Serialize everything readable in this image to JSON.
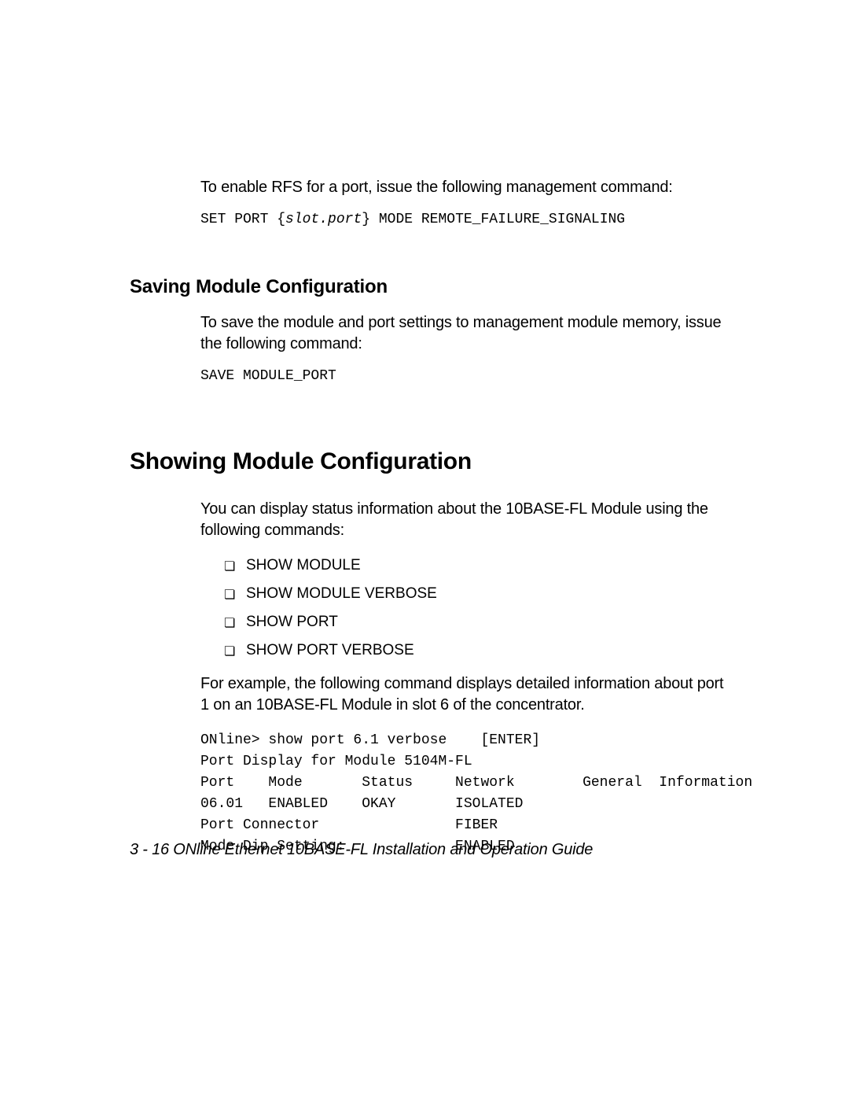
{
  "intro": {
    "rfs_text": "To enable RFS for a port, issue the following management command:",
    "cmd_prefix": "SET PORT {",
    "cmd_param": "slot.port",
    "cmd_suffix": "} MODE REMOTE_FAILURE_SIGNALING"
  },
  "saving": {
    "heading": "Saving Module Configuration",
    "body": "To save the module and port settings to management module memory, issue the following command:",
    "cmd": "SAVE MODULE_PORT"
  },
  "showing": {
    "heading": "Showing Module Configuration",
    "body": "You can display status information about the 10BASE-FL Module using the following commands:",
    "items": [
      "SHOW MODULE",
      "SHOW MODULE VERBOSE",
      "SHOW PORT",
      "SHOW PORT VERBOSE"
    ],
    "example_intro": "For example, the following command displays detailed information about port 1 on an 10BASE-FL Module in slot 6 of the concentrator.",
    "terminal": "ONline> show port 6.1 verbose    [ENTER]\nPort Display for Module 5104M-FL\nPort    Mode       Status     Network        General  Information\n06.01   ENABLED    OKAY       ISOLATED\nPort Connector                FIBER\nMode Dip Setting:             ENABLED"
  },
  "footer": {
    "page_ref": "3 - 16",
    "title": "  ONline Ethernet 10BASE-FL Installation and Operation Guide"
  },
  "style": {
    "bullet_glyph": "❏"
  }
}
